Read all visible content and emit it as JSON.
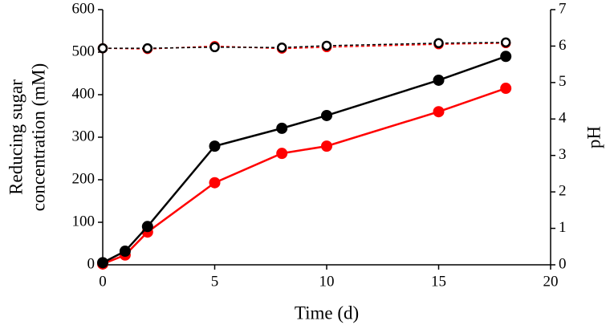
{
  "chart_data": {
    "type": "line",
    "xlabel": "Time (d)",
    "ylabel": [
      "Reducing sugar",
      "concentration (mM)"
    ],
    "y2label": "pH",
    "xlim": [
      0,
      20
    ],
    "xticks": [
      0,
      5,
      10,
      15,
      20
    ],
    "ylim": [
      0,
      600
    ],
    "yticks": [
      0,
      100,
      200,
      300,
      400,
      500,
      600
    ],
    "y2lim": [
      0,
      7
    ],
    "y2ticks": [
      0,
      1,
      2,
      3,
      4,
      5,
      6,
      7
    ],
    "series": [
      {
        "color": "#ff0000",
        "marker": "filled",
        "dashed": false,
        "x": [
          0,
          1,
          2,
          5,
          8,
          10,
          15,
          18
        ],
        "values": [
          2,
          23,
          77,
          193,
          262,
          279,
          360,
          415
        ]
      },
      {
        "color": "#000000",
        "marker": "filled",
        "dashed": false,
        "x": [
          0,
          1,
          2,
          5,
          8,
          10,
          15,
          18
        ],
        "values": [
          5,
          32,
          90,
          279,
          321,
          351,
          434,
          490
        ]
      },
      {
        "color": "#ff0000",
        "marker": "open",
        "dashed": true,
        "axis": "y2",
        "x": [
          0,
          2,
          5,
          8,
          10,
          15,
          18
        ],
        "values": [
          5.94,
          5.92,
          6.0,
          5.93,
          5.97,
          6.05,
          6.08
        ]
      },
      {
        "color": "#000000",
        "marker": "open",
        "dashed": true,
        "axis": "y2",
        "x": [
          0,
          2,
          5,
          8,
          10,
          15,
          18
        ],
        "values": [
          5.94,
          5.94,
          5.97,
          5.96,
          6.01,
          6.08,
          6.1
        ]
      }
    ]
  }
}
